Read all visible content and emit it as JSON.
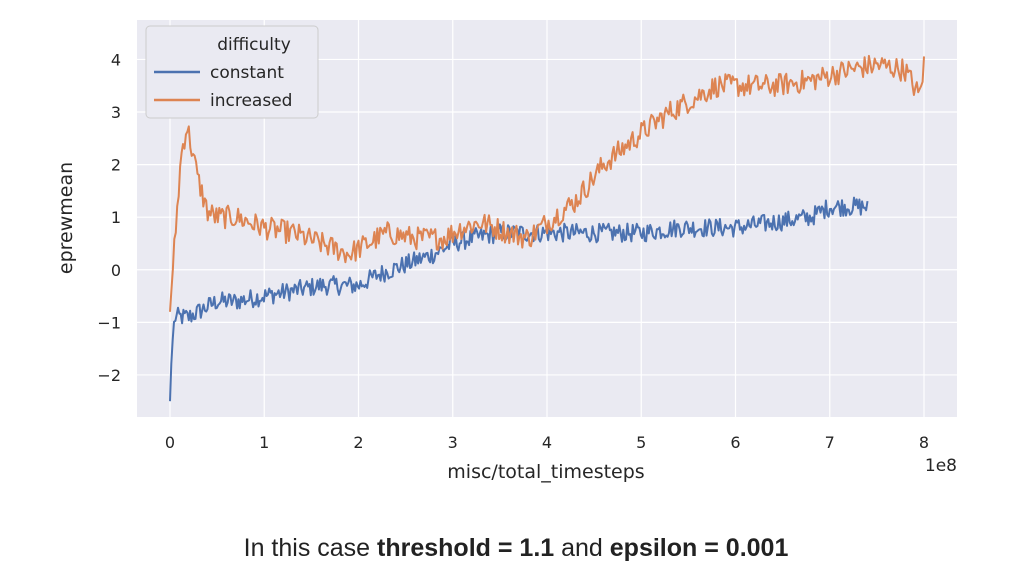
{
  "chart_data": {
    "type": "line",
    "xlabel": "misc/total_timesteps",
    "ylabel": "eprewmean",
    "x_offset_label": "1e8",
    "xlim": [
      -0.35,
      8.35
    ],
    "ylim": [
      -2.8,
      4.75
    ],
    "xticks": [
      0,
      1,
      2,
      3,
      4,
      5,
      6,
      7,
      8
    ],
    "xtick_labels": [
      "0",
      "1",
      "2",
      "3",
      "4",
      "5",
      "6",
      "7",
      "8"
    ],
    "yticks": [
      -2,
      -1,
      0,
      1,
      2,
      3,
      4
    ],
    "ytick_labels": [
      "−2",
      "−1",
      "0",
      "1",
      "2",
      "3",
      "4"
    ],
    "grid": true,
    "legend": {
      "title": "difficulty",
      "placement": "top-left"
    },
    "series": [
      {
        "name": "constant",
        "color": "#4c72b0",
        "x": [
          0.0,
          0.02,
          0.05,
          0.1,
          0.2,
          0.3,
          0.5,
          0.7,
          1.0,
          1.3,
          1.6,
          1.9,
          2.0,
          2.2,
          2.5,
          2.8,
          3.0,
          3.2,
          3.5,
          3.8,
          4.0,
          4.3,
          4.6,
          5.0,
          5.4,
          5.8,
          6.0,
          6.4,
          6.8,
          7.0,
          7.2,
          7.4
        ],
        "y": [
          -2.5,
          -1.5,
          -0.9,
          -0.9,
          -0.9,
          -0.8,
          -0.6,
          -0.6,
          -0.5,
          -0.4,
          -0.3,
          -0.3,
          -0.3,
          -0.1,
          0.1,
          0.3,
          0.5,
          0.6,
          0.7,
          0.7,
          0.7,
          0.7,
          0.7,
          0.7,
          0.8,
          0.8,
          0.8,
          0.9,
          1.0,
          1.2,
          1.2,
          1.2
        ]
      },
      {
        "name": "increased",
        "color": "#dd8452",
        "x": [
          0.0,
          0.03,
          0.07,
          0.12,
          0.18,
          0.22,
          0.3,
          0.4,
          0.5,
          0.7,
          1.0,
          1.3,
          1.6,
          1.9,
          2.0,
          2.3,
          2.6,
          2.9,
          3.1,
          3.3,
          3.6,
          3.8,
          4.0,
          4.3,
          4.6,
          5.0,
          5.3,
          5.6,
          5.8,
          6.0,
          6.4,
          6.8,
          7.2,
          7.5,
          7.8,
          7.95,
          8.0
        ],
        "y": [
          -0.8,
          0.0,
          1.0,
          2.2,
          2.75,
          2.4,
          1.7,
          1.1,
          1.0,
          1.0,
          0.8,
          0.7,
          0.5,
          0.3,
          0.4,
          0.7,
          0.6,
          0.6,
          0.8,
          0.9,
          0.7,
          0.6,
          0.9,
          1.3,
          2.0,
          2.6,
          3.0,
          3.3,
          3.5,
          3.5,
          3.5,
          3.6,
          3.8,
          3.9,
          3.8,
          3.3,
          3.9
        ]
      }
    ]
  },
  "caption": {
    "prefix": "In this case ",
    "threshold_label": "threshold = 1.1",
    "middle": " and ",
    "epsilon_label": "epsilon = 0.001"
  }
}
